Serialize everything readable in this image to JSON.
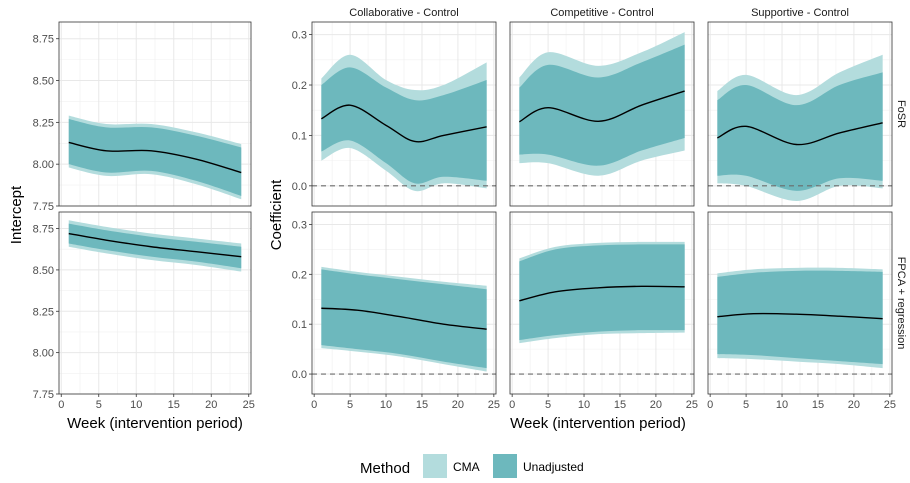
{
  "chart_data": {
    "type": "area",
    "colors": {
      "cma": "#b3dcdd",
      "unadjusted": "#6db8bd",
      "line": "#000000",
      "zero_line": "#6b6b6b"
    },
    "x_axis_label": "Week (intervention period)",
    "x_ticks": [
      "0",
      "5",
      "10",
      "15",
      "20",
      "25"
    ],
    "legend": {
      "title": "Method",
      "entries": [
        "CMA",
        "Unadjusted"
      ],
      "position": "bottom"
    },
    "rows": [
      "FoSR",
      "FPCA + regression"
    ],
    "intercept": {
      "ylabel": "Intercept",
      "ylim": [
        7.75,
        8.85
      ],
      "y_ticks": [
        "7.75",
        "8.00",
        "8.25",
        "8.50",
        "8.75"
      ],
      "panels": [
        {
          "row": "FoSR",
          "x": [
            1,
            6,
            12,
            18,
            24
          ],
          "estimate": [
            8.13,
            8.08,
            8.08,
            8.03,
            7.95
          ],
          "cma_lower": [
            7.98,
            7.93,
            7.94,
            7.88,
            7.79
          ],
          "cma_upper": [
            8.29,
            8.24,
            8.24,
            8.19,
            8.12
          ],
          "unadj_lower": [
            8.0,
            7.95,
            7.96,
            7.9,
            7.81
          ],
          "unadj_upper": [
            8.27,
            8.22,
            8.22,
            8.17,
            8.1
          ]
        },
        {
          "row": "FPCA + regression",
          "x": [
            1,
            6,
            12,
            18,
            24
          ],
          "estimate": [
            8.72,
            8.68,
            8.64,
            8.61,
            8.58
          ],
          "cma_lower": [
            8.64,
            8.6,
            8.56,
            8.53,
            8.49
          ],
          "cma_upper": [
            8.8,
            8.76,
            8.72,
            8.69,
            8.66
          ],
          "unadj_lower": [
            8.66,
            8.62,
            8.58,
            8.55,
            8.51
          ],
          "unadj_upper": [
            8.78,
            8.74,
            8.7,
            8.67,
            8.64
          ]
        }
      ]
    },
    "coefficient": {
      "ylabel": "Coefficient",
      "ylim": [
        -0.04,
        0.325
      ],
      "y_ticks": [
        "0.0",
        "0.1",
        "0.2",
        "0.3"
      ],
      "columns": [
        "Collaborative - Control",
        "Competitive - Control",
        "Supportive - Control"
      ],
      "panels": [
        {
          "row": "FoSR",
          "column": "Collaborative - Control",
          "x": [
            1,
            5,
            10,
            14,
            18,
            24
          ],
          "estimate": [
            0.133,
            0.16,
            0.12,
            0.088,
            0.1,
            0.117
          ],
          "cma_lower": [
            0.05,
            0.075,
            0.03,
            -0.01,
            0.005,
            -0.005
          ],
          "cma_upper": [
            0.213,
            0.26,
            0.21,
            0.19,
            0.2,
            0.245
          ],
          "unadj_lower": [
            0.068,
            0.09,
            0.045,
            0.005,
            0.018,
            0.01
          ],
          "unadj_upper": [
            0.2,
            0.235,
            0.195,
            0.17,
            0.18,
            0.21
          ]
        },
        {
          "row": "FoSR",
          "column": "Competitive - Control",
          "x": [
            1,
            5,
            12,
            18,
            24
          ],
          "estimate": [
            0.127,
            0.155,
            0.128,
            0.16,
            0.188
          ],
          "cma_lower": [
            0.045,
            0.045,
            0.02,
            0.05,
            0.07
          ],
          "cma_upper": [
            0.215,
            0.265,
            0.238,
            0.265,
            0.305
          ],
          "unadj_lower": [
            0.062,
            0.062,
            0.04,
            0.07,
            0.095
          ],
          "unadj_upper": [
            0.195,
            0.24,
            0.215,
            0.245,
            0.28
          ]
        },
        {
          "row": "FoSR",
          "column": "Supportive - Control",
          "x": [
            1,
            5,
            12,
            18,
            24
          ],
          "estimate": [
            0.095,
            0.118,
            0.082,
            0.105,
            0.125
          ],
          "cma_lower": [
            0.005,
            0.0,
            -0.03,
            0.0,
            -0.005
          ],
          "cma_upper": [
            0.188,
            0.22,
            0.18,
            0.225,
            0.26
          ],
          "unadj_lower": [
            0.02,
            0.02,
            -0.01,
            0.015,
            0.01
          ],
          "unadj_upper": [
            0.17,
            0.2,
            0.16,
            0.2,
            0.225
          ]
        },
        {
          "row": "FPCA + regression",
          "column": "Collaborative - Control",
          "x": [
            1,
            6,
            12,
            18,
            24
          ],
          "estimate": [
            0.132,
            0.128,
            0.115,
            0.1,
            0.09
          ],
          "cma_lower": [
            0.052,
            0.045,
            0.035,
            0.02,
            0.005
          ],
          "cma_upper": [
            0.215,
            0.205,
            0.195,
            0.185,
            0.177
          ],
          "unadj_lower": [
            0.058,
            0.05,
            0.04,
            0.025,
            0.012
          ],
          "unadj_upper": [
            0.21,
            0.2,
            0.19,
            0.18,
            0.17
          ]
        },
        {
          "row": "FPCA + regression",
          "column": "Competitive - Control",
          "x": [
            1,
            6,
            12,
            18,
            24
          ],
          "estimate": [
            0.147,
            0.165,
            0.173,
            0.176,
            0.175
          ],
          "cma_lower": [
            0.062,
            0.072,
            0.08,
            0.082,
            0.083
          ],
          "cma_upper": [
            0.232,
            0.255,
            0.263,
            0.265,
            0.265
          ],
          "unadj_lower": [
            0.068,
            0.078,
            0.085,
            0.088,
            0.088
          ],
          "unadj_upper": [
            0.226,
            0.25,
            0.258,
            0.26,
            0.26
          ]
        },
        {
          "row": "FPCA + regression",
          "column": "Supportive - Control",
          "x": [
            1,
            6,
            12,
            18,
            24
          ],
          "estimate": [
            0.115,
            0.121,
            0.12,
            0.116,
            0.111
          ],
          "cma_lower": [
            0.032,
            0.03,
            0.025,
            0.02,
            0.012
          ],
          "cma_upper": [
            0.202,
            0.21,
            0.213,
            0.213,
            0.21
          ],
          "unadj_lower": [
            0.04,
            0.038,
            0.032,
            0.026,
            0.02
          ],
          "unadj_upper": [
            0.195,
            0.203,
            0.207,
            0.207,
            0.205
          ]
        }
      ]
    }
  }
}
